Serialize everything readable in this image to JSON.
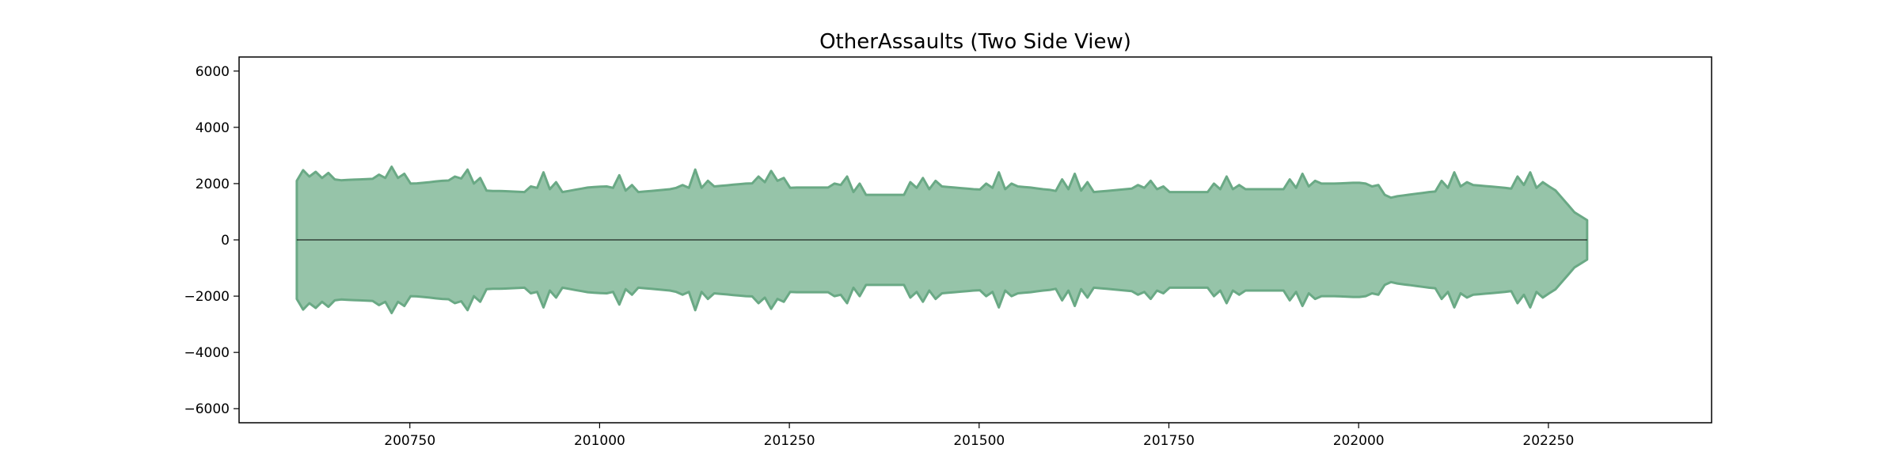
{
  "chart_data": {
    "type": "area",
    "title": "OtherAssaults (Two Side View)",
    "xlabel": "",
    "ylabel": "",
    "xlim": [
      200525,
      202465
    ],
    "ylim": [
      -6500,
      6500
    ],
    "xticks": [
      200750,
      201000,
      201250,
      201500,
      201750,
      202000,
      202250
    ],
    "yticks": [
      6000,
      4000,
      2000,
      0,
      -2000,
      -4000,
      -6000
    ],
    "ytick_labels": [
      "6000",
      "4000",
      "2000",
      "0",
      "−2000",
      "−4000",
      "−6000"
    ],
    "legend": "none",
    "grid": false,
    "mirrored": true,
    "colors": {
      "fill": "#96c4a9",
      "stroke": "#6aa985",
      "zero_line": "#000000"
    },
    "series": [
      {
        "x": [
          200601,
          200602,
          200603,
          200604,
          200605,
          200606,
          200607,
          200608,
          200609,
          200610,
          200611,
          200612,
          200701,
          200702,
          200703,
          200704,
          200705,
          200706,
          200707,
          200708,
          200709,
          200710,
          200711,
          200712,
          200801,
          200802,
          200803,
          200804,
          200805,
          200806,
          200807,
          200808,
          200809,
          200810,
          200811,
          200812,
          200901,
          200902,
          200903,
          200904,
          200905,
          200906,
          200907,
          200908,
          200909,
          200910,
          200911,
          200912,
          201001,
          201002,
          201003,
          201004,
          201005,
          201006,
          201007,
          201008,
          201009,
          201010,
          201011,
          201012,
          201101,
          201102,
          201103,
          201104,
          201105,
          201106,
          201107,
          201108,
          201109,
          201110,
          201111,
          201112,
          201201,
          201202,
          201203,
          201204,
          201205,
          201206,
          201207,
          201208,
          201209,
          201210,
          201211,
          201212,
          201301,
          201302,
          201303,
          201304,
          201305,
          201306,
          201307,
          201308,
          201309,
          201310,
          201311,
          201312,
          201401,
          201402,
          201403,
          201404,
          201405,
          201406,
          201407,
          201408,
          201409,
          201410,
          201411,
          201412,
          201501,
          201502,
          201503,
          201504,
          201505,
          201506,
          201507,
          201508,
          201509,
          201510,
          201511,
          201512,
          201601,
          201602,
          201603,
          201604,
          201605,
          201606,
          201607,
          201608,
          201609,
          201610,
          201611,
          201612,
          201701,
          201702,
          201703,
          201704,
          201705,
          201706,
          201707,
          201708,
          201709,
          201710,
          201711,
          201712,
          201801,
          201802,
          201803,
          201804,
          201805,
          201806,
          201807,
          201808,
          201809,
          201810,
          201811,
          201812,
          201901,
          201902,
          201903,
          201904,
          201905,
          201906,
          201907,
          201908,
          201909,
          201910,
          201911,
          201912,
          202001,
          202002,
          202003,
          202004,
          202005,
          202006,
          202007,
          202008,
          202009,
          202010,
          202011,
          202012,
          202101,
          202102,
          202103,
          202104,
          202105,
          202106,
          202107,
          202108,
          202109,
          202110,
          202111,
          202112,
          202201,
          202202,
          202203,
          202204,
          202205,
          202206,
          202207,
          202208,
          202209,
          202210,
          202211,
          202212,
          202301
        ],
        "y": [
          2100,
          2480,
          2250,
          2420,
          2200,
          2380,
          2150,
          2120,
          2130,
          2140,
          2150,
          2160,
          2170,
          2320,
          2200,
          2600,
          2200,
          2350,
          2000,
          2010,
          2030,
          2050,
          2080,
          2100,
          2110,
          2250,
          2180,
          2500,
          2000,
          2200,
          1750,
          1740,
          1740,
          1730,
          1720,
          1710,
          1700,
          1900,
          1850,
          2400,
          1800,
          2050,
          1700,
          1740,
          1780,
          1820,
          1860,
          1880,
          1890,
          1900,
          1850,
          2300,
          1750,
          1950,
          1700,
          1720,
          1740,
          1760,
          1780,
          1800,
          1850,
          1950,
          1850,
          2500,
          1850,
          2100,
          1900,
          1920,
          1940,
          1960,
          1980,
          2000,
          2010,
          2250,
          2050,
          2450,
          2100,
          2200,
          1850,
          1860,
          1860,
          1860,
          1860,
          1860,
          1860,
          2000,
          1950,
          2250,
          1700,
          2000,
          1600,
          1600,
          1600,
          1600,
          1600,
          1600,
          1600,
          2050,
          1850,
          2200,
          1800,
          2100,
          1900,
          1880,
          1860,
          1840,
          1820,
          1800,
          1790,
          2000,
          1850,
          2400,
          1800,
          2000,
          1900,
          1880,
          1860,
          1830,
          1800,
          1780,
          1740,
          2150,
          1800,
          2350,
          1750,
          2050,
          1700,
          1720,
          1740,
          1760,
          1780,
          1800,
          1820,
          1950,
          1850,
          2100,
          1800,
          1900,
          1700,
          1700,
          1700,
          1700,
          1700,
          1700,
          1700,
          2000,
          1800,
          2250,
          1800,
          1950,
          1800,
          1800,
          1800,
          1800,
          1800,
          1800,
          1800,
          2150,
          1850,
          2350,
          1900,
          2100,
          2000,
          2000,
          2000,
          2010,
          2020,
          2030,
          2030,
          2000,
          1900,
          1950,
          1600,
          1500,
          1550,
          1580,
          1610,
          1640,
          1670,
          1700,
          1720,
          2100,
          1850,
          2400,
          1900,
          2050,
          1950,
          1930,
          1910,
          1890,
          1870,
          1850,
          1820,
          2250,
          1950,
          2400,
          1850,
          2050,
          1900,
          1760,
          1500,
          1240,
          980,
          840,
          700
        ]
      }
    ]
  }
}
